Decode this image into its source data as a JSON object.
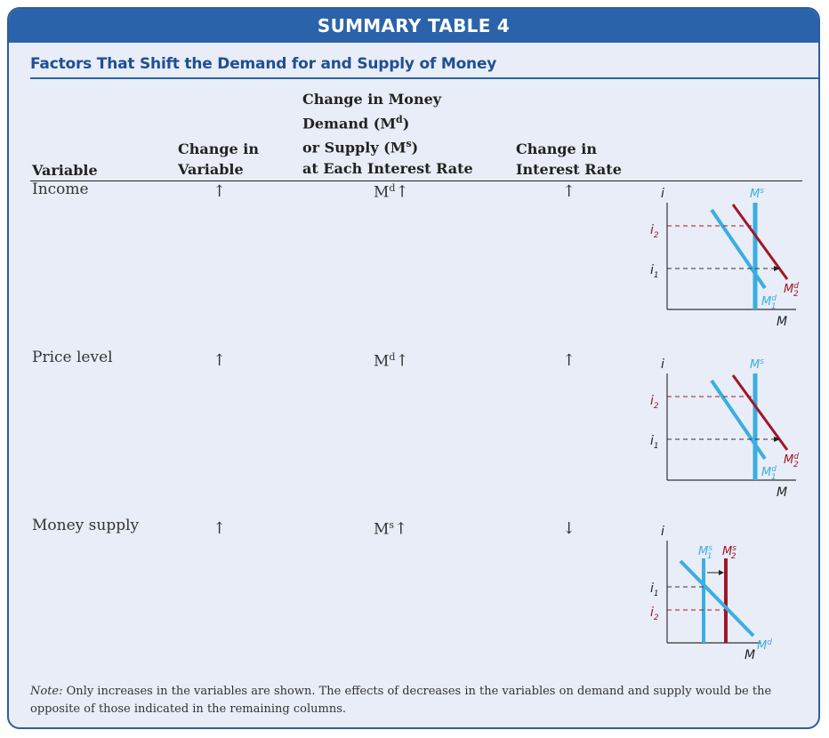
{
  "banner": {
    "title": "SUMMARY TABLE 4"
  },
  "subtitle": "Factors That Shift the Demand for and Supply of Money",
  "columns": {
    "variable": "Variable",
    "change_in_variable": [
      "Change in",
      "Variable"
    ],
    "change_in_demand": [
      "Change in Money",
      "Demand (M",
      ")",
      "or Supply (M",
      ")",
      "at Each Interest Rate"
    ],
    "change_in_demand_sup": [
      "d",
      "s"
    ],
    "change_in_rate": [
      "Change in",
      "Interest Rate"
    ]
  },
  "rows": [
    {
      "variable": "Income",
      "change_in_variable": "↑",
      "shift_base": "M",
      "shift_sup": "d",
      "shift_arrow": "↑",
      "rate": "↑"
    },
    {
      "variable": "Price level",
      "change_in_variable": "↑",
      "shift_base": "M",
      "shift_sup": "d",
      "shift_arrow": "↑",
      "rate": "↑"
    },
    {
      "variable": "Money supply",
      "change_in_variable": "↑",
      "shift_base": "M",
      "shift_sup": "s",
      "shift_arrow": "↑",
      "rate": "↓"
    }
  ],
  "graphs": {
    "axis_y": "i",
    "axis_x": "M",
    "demand_shift": {
      "i1": "i",
      "i1_sub": "1",
      "i2": "i",
      "i2_sub": "2",
      "ms": "M",
      "ms_sup": "s",
      "md1": "M",
      "md1_sup": "d",
      "md1_sub": "1",
      "md2": "M",
      "md2_sup": "d",
      "md2_sub": "2"
    },
    "supply_shift": {
      "i1": "i",
      "i1_sub": "1",
      "i2": "i",
      "i2_sub": "2",
      "ms1": "M",
      "ms1_sup": "s",
      "ms1_sub": "1",
      "ms2": "M",
      "ms2_sup": "s",
      "ms2_sub": "2",
      "md": "M",
      "md_sup": "d"
    }
  },
  "colors": {
    "banner": "#2a63aa",
    "blue_curve": "#3aaee0",
    "red_curve": "#a0162a",
    "card_bg": "#e9edf7"
  },
  "note": {
    "label": "Note:",
    "text": " Only increases in the variables are shown. The effects of decreases in the variables on demand and supply would be the opposite of those indicated in the remaining columns."
  }
}
